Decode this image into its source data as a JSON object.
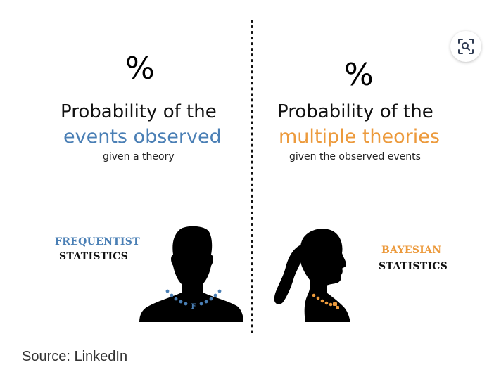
{
  "figure": {
    "left": {
      "symbol": "%",
      "heading": "Probability of the",
      "accent": "events observed",
      "subtitle": "given a theory",
      "label_line1": "FREQUENTIST",
      "label_line2": "STATISTICS",
      "necklace_letter": "F",
      "accent_color": "#4a7fb5"
    },
    "right": {
      "symbol": "%",
      "heading": "Probability of the",
      "accent": "multiple theories",
      "subtitle": "given the observed events",
      "label_line1": "BAYESIAN",
      "label_line2": "STATISTICS",
      "accent_color": "#ec9a3c"
    },
    "icons": {
      "left_person": "man-silhouette-icon",
      "right_person": "woman-silhouette-icon",
      "expand": "image-search-icon"
    }
  },
  "caption": "Source: LinkedIn"
}
